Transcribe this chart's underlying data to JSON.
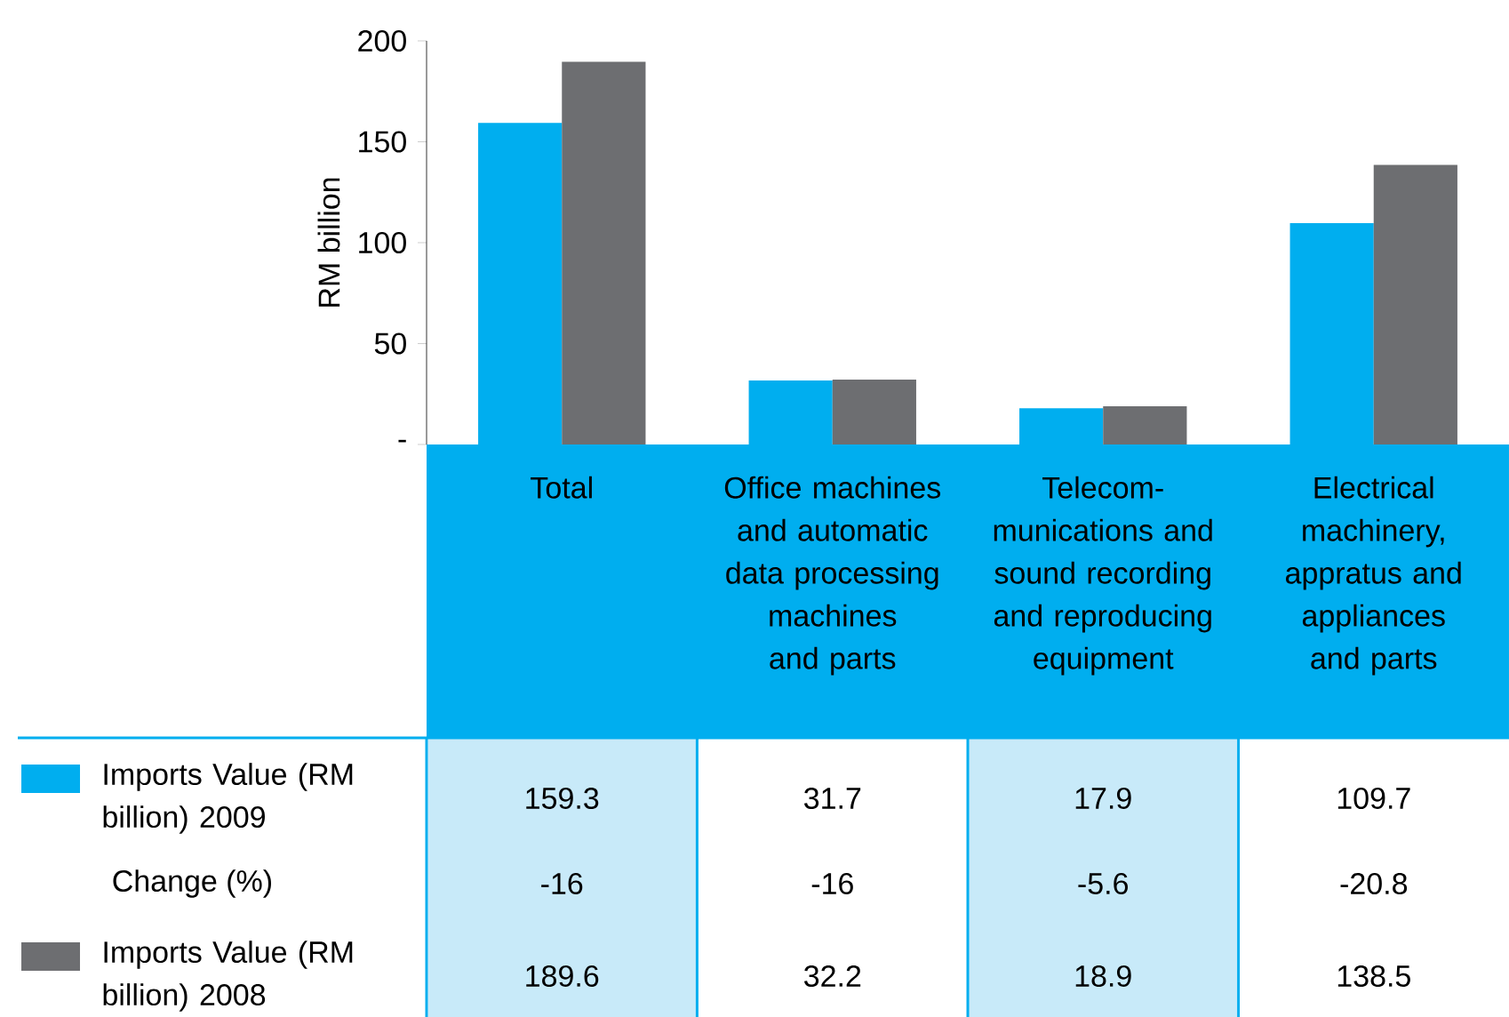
{
  "chart_data": {
    "type": "bar",
    "ylabel": "RM billion",
    "categories": [
      "Total",
      "Office machines and automatic data processing machines and parts",
      "Telecom-munications and sound recording and reproducing equipment",
      "Electrical machinery, appratus and appliances and parts"
    ],
    "series": [
      {
        "name": "Imports Value (RM billion) 2009",
        "color": "#00aeef",
        "values": [
          159.3,
          31.7,
          17.9,
          109.7
        ],
        "value_labels": [
          "159.3",
          "31.7",
          "17.9",
          "109.7"
        ]
      },
      {
        "name": "Imports Value (RM billion) 2008",
        "color": "#6d6e71",
        "values": [
          189.6,
          32.2,
          18.9,
          138.5
        ],
        "value_labels": [
          "189.6",
          "32.2",
          "18.9",
          "138.5"
        ]
      }
    ],
    "ylim": [
      0,
      200
    ],
    "yticks": [
      {
        "value": 0,
        "label": "-"
      },
      50,
      100,
      150,
      200
    ],
    "legend": "bottom left",
    "annotations": [
      "Change (%)",
      "-16",
      "-16",
      "-5.6",
      "-20.8"
    ]
  }
}
